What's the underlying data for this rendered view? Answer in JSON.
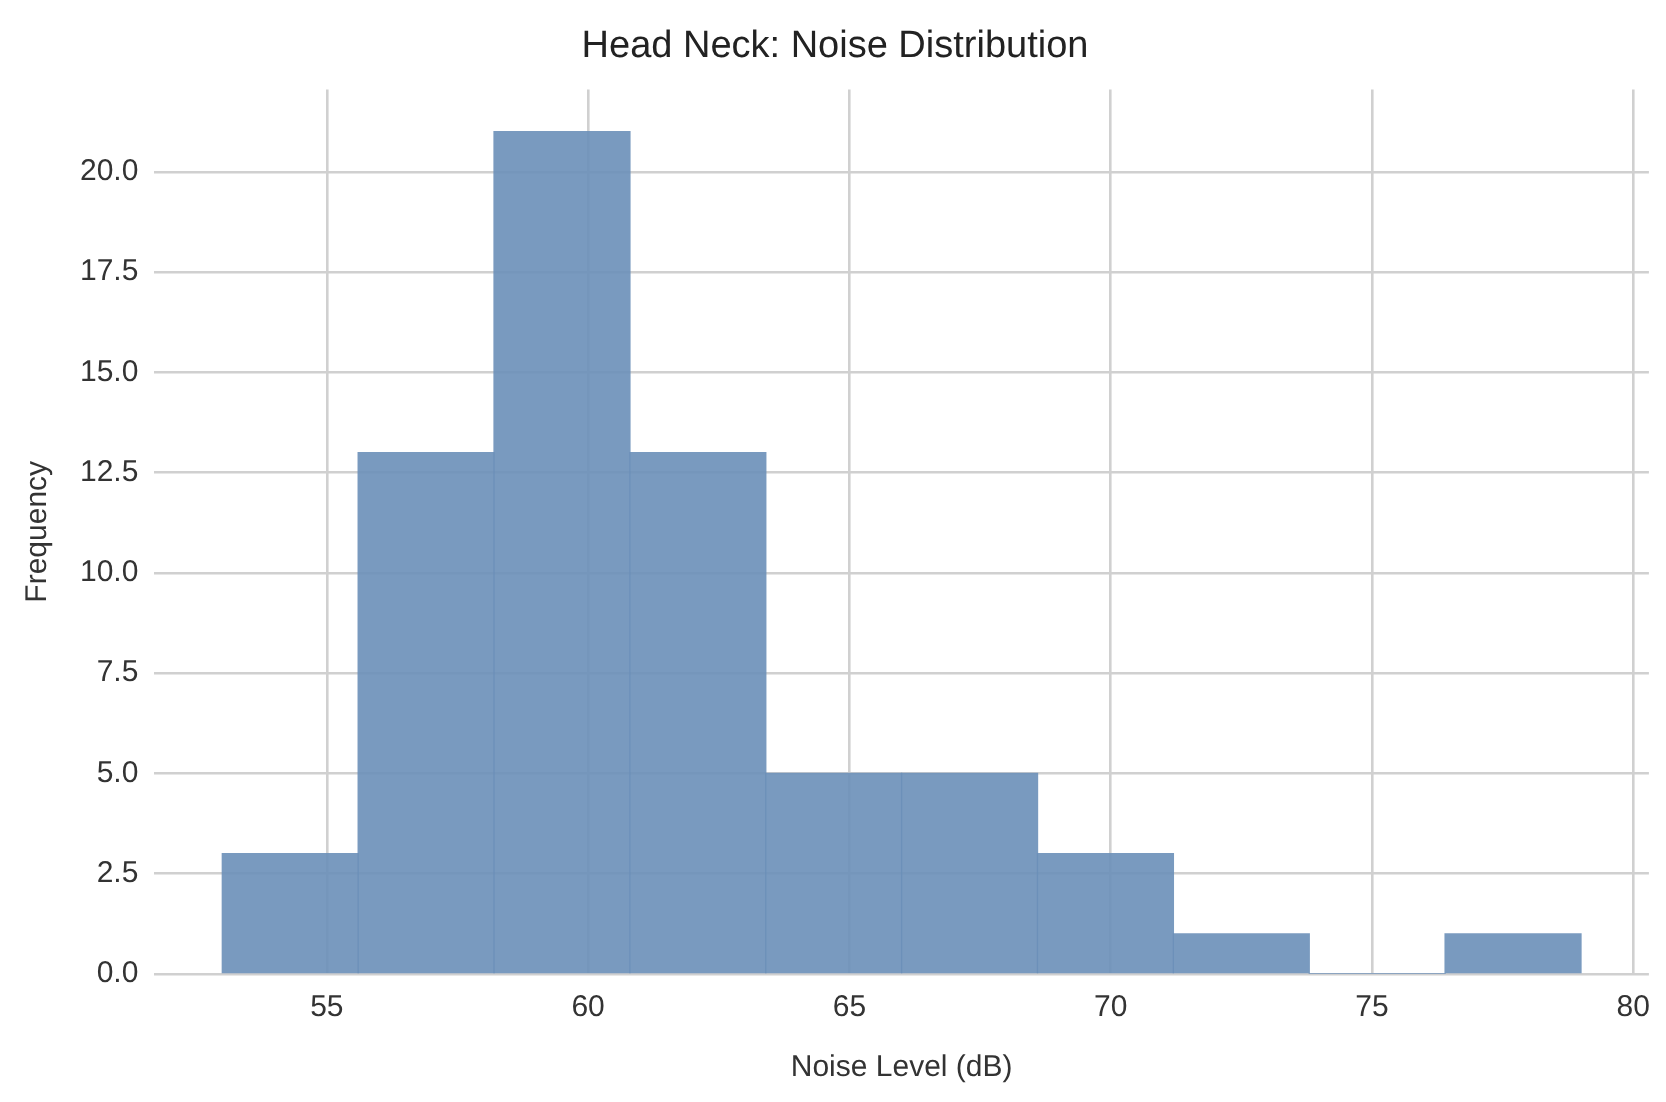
{
  "chart_data": {
    "type": "histogram",
    "title": "Head Neck: Noise Distribution",
    "xlabel": "Noise Level (dB)",
    "ylabel": "Frequency",
    "bins": [
      53,
      55.6,
      58.2,
      60.8,
      63.4,
      66,
      68.6,
      71.2,
      73.8,
      76.4,
      79
    ],
    "values": [
      3,
      13,
      21,
      13,
      5,
      5,
      3,
      1,
      0,
      1
    ],
    "color": "#6a8fb8",
    "xlim": [
      51.7,
      80.3
    ],
    "xticks": [
      55,
      60,
      65,
      70,
      75,
      80
    ],
    "ylim": [
      0,
      22.05
    ],
    "yticks": [
      {
        "value": 0,
        "label": "0.0"
      },
      {
        "value": 2.5,
        "label": "2.5"
      },
      {
        "value": 5,
        "label": "5.0"
      },
      {
        "value": 7.5,
        "label": "7.5"
      },
      {
        "value": 10,
        "label": "10.0"
      },
      {
        "value": 12.5,
        "label": "12.5"
      },
      {
        "value": 15,
        "label": "15.0"
      },
      {
        "value": 17.5,
        "label": "17.5"
      },
      {
        "value": 20,
        "label": "20.0"
      }
    ],
    "grid": true
  }
}
